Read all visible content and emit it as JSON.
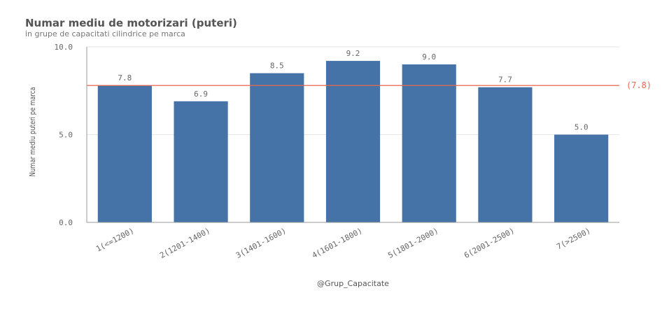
{
  "header": {
    "title": "Numar mediu de motorizari (puteri)",
    "subtitle": "in grupe de capacitati cilindrice pe marca"
  },
  "colors": {
    "bar": "#4573a7",
    "reference_line": "#e9684f",
    "grid": "#e6e6e6",
    "axis": "#999999"
  },
  "chart_data": {
    "type": "bar",
    "title": "Numar mediu de motorizari (puteri)",
    "subtitle": "in grupe de capacitati cilindrice pe marca",
    "xlabel": "@Grup_Capacitate",
    "ylabel": "Numar mediu puteri pe marca",
    "categories": [
      "1(<=1200)",
      "2(1201-1400)",
      "3(1401-1600)",
      "4(1601-1800)",
      "5(1801-2000)",
      "6(2001-2500)",
      "7(>2500)"
    ],
    "values": [
      7.8,
      6.9,
      8.5,
      9.2,
      9.0,
      7.7,
      5.0
    ],
    "data_labels": [
      "7.8",
      "6.9",
      "8.5",
      "9.2",
      "9.0",
      "7.7",
      "5.0"
    ],
    "ylim": [
      0,
      10
    ],
    "yticks": [
      0,
      5,
      10
    ],
    "ytick_labels": [
      "0.0",
      "5.0",
      "10.0"
    ],
    "reference_line": {
      "value": 7.8,
      "label": "(7.8)"
    },
    "grid": true,
    "legend": "none"
  }
}
